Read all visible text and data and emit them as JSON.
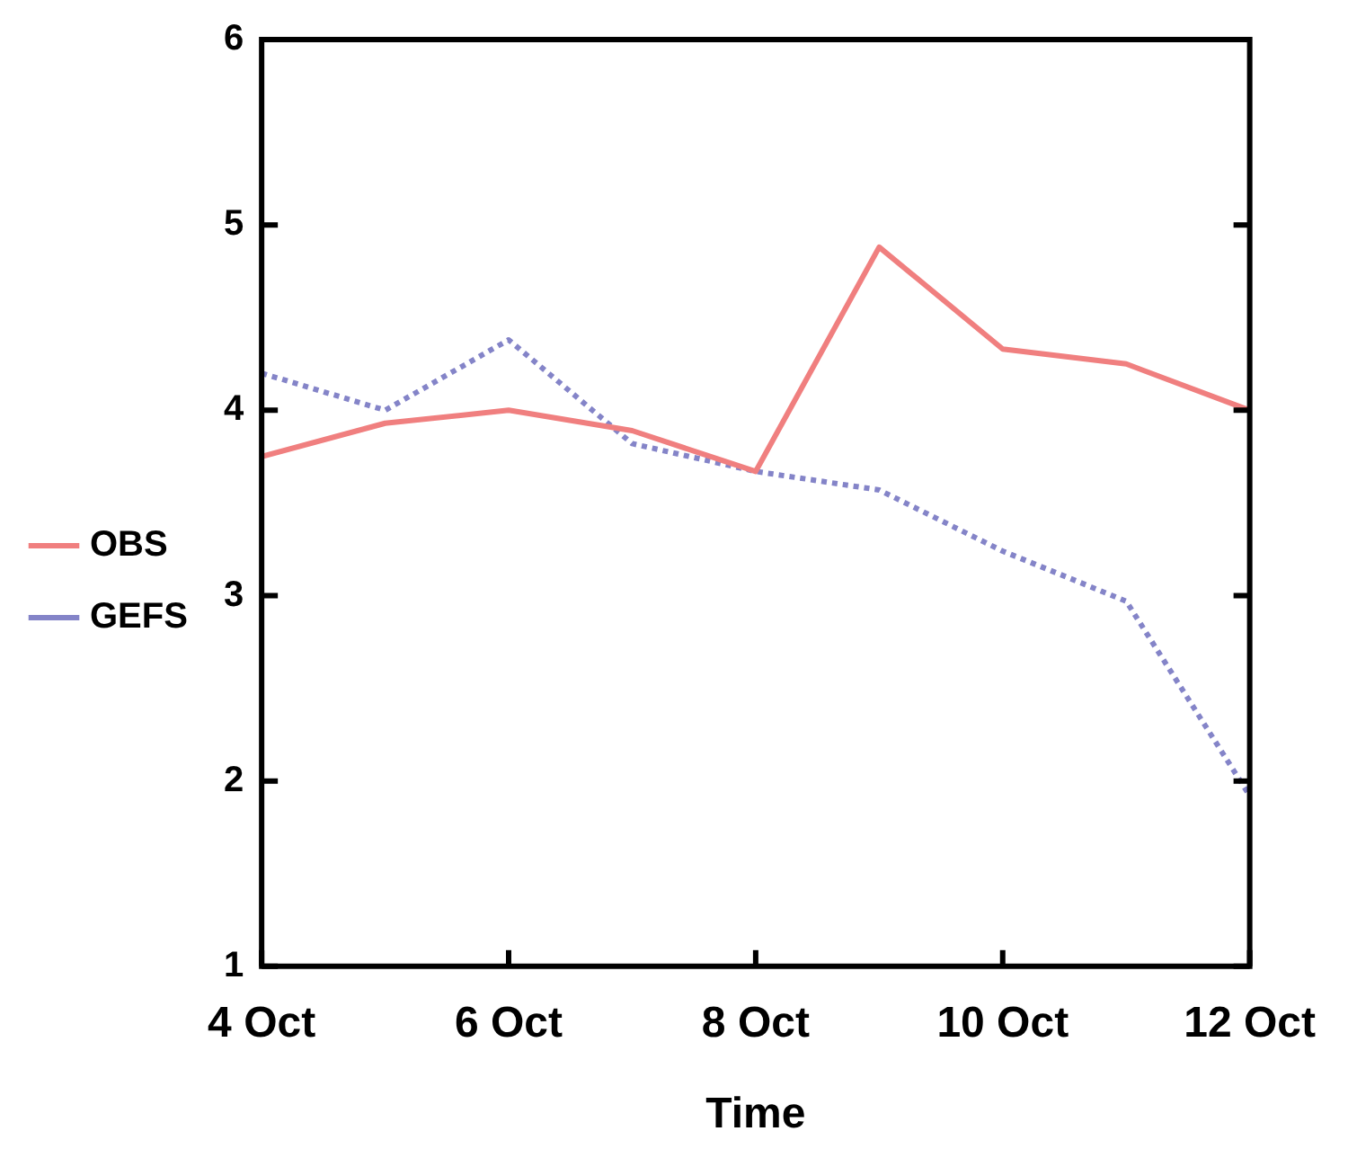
{
  "chart_data": {
    "type": "line",
    "xlabel": "Time",
    "x": [
      "--10-04",
      "--10-05",
      "--10-06",
      "--10-07",
      "--10-08",
      "--10-09",
      "--10-10",
      "--10-11",
      "--10-12"
    ],
    "series": [
      {
        "name": "OBS",
        "color": "#f07f7f",
        "line_style": "solid",
        "values": [
          3.75,
          3.93,
          4.0,
          3.89,
          3.67,
          4.88,
          4.33,
          4.25,
          4.0
        ]
      },
      {
        "name": "GEFS",
        "color": "#8484c8",
        "line_style": "dotted",
        "values": [
          4.2,
          4.0,
          4.38,
          3.82,
          3.67,
          3.57,
          3.24,
          2.97,
          1.92
        ]
      }
    ],
    "xlim": [
      "--10-04",
      "--10-12"
    ],
    "xticks": [
      {
        "value": "--10-04",
        "label": "4 Oct"
      },
      {
        "value": "--10-06",
        "label": "6 Oct"
      },
      {
        "value": "--10-08",
        "label": "8 Oct"
      },
      {
        "value": "--10-10",
        "label": "10 Oct"
      },
      {
        "value": "--10-12",
        "label": "12 Oct"
      }
    ],
    "ylim": [
      1,
      6
    ],
    "yticks": [
      1,
      2,
      3,
      4,
      5,
      6
    ],
    "grid": false,
    "legend": "left",
    "marker": "none"
  }
}
